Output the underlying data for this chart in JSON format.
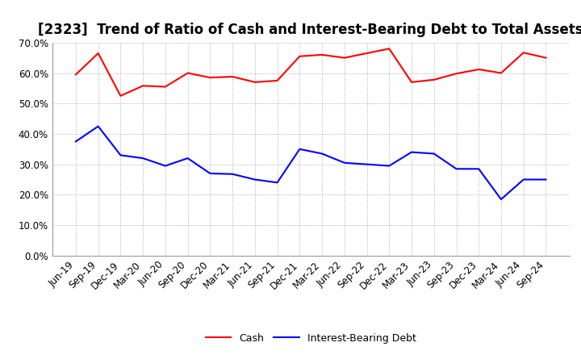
{
  "title": "[2323]  Trend of Ratio of Cash and Interest-Bearing Debt to Total Assets",
  "x_labels": [
    "Jun-19",
    "Sep-19",
    "Dec-19",
    "Mar-20",
    "Jun-20",
    "Sep-20",
    "Dec-20",
    "Mar-21",
    "Jun-21",
    "Sep-21",
    "Dec-21",
    "Mar-22",
    "Jun-22",
    "Sep-22",
    "Dec-22",
    "Mar-23",
    "Jun-23",
    "Sep-23",
    "Dec-23",
    "Mar-24",
    "Jun-24",
    "Sep-24"
  ],
  "cash": [
    0.595,
    0.665,
    0.525,
    0.558,
    0.555,
    0.6,
    0.585,
    0.588,
    0.57,
    0.575,
    0.655,
    0.66,
    0.65,
    0.665,
    0.68,
    0.57,
    0.578,
    0.598,
    0.612,
    0.6,
    0.667,
    0.65
  ],
  "debt": [
    0.375,
    0.425,
    0.33,
    0.32,
    0.295,
    0.32,
    0.27,
    0.268,
    0.25,
    0.24,
    0.35,
    0.335,
    0.305,
    0.3,
    0.295,
    0.34,
    0.335,
    0.285,
    0.285,
    0.185,
    0.25,
    0.25
  ],
  "cash_color": "#FF0000",
  "debt_color": "#0000FF",
  "background_color": "#FFFFFF",
  "grid_color": "#999999",
  "ylim": [
    0.0,
    0.7
  ],
  "yticks": [
    0.0,
    0.1,
    0.2,
    0.3,
    0.4,
    0.5,
    0.6,
    0.7
  ],
  "legend_cash": "Cash",
  "legend_debt": "Interest-Bearing Debt",
  "title_fontsize": 12,
  "tick_fontsize": 8.5,
  "legend_fontsize": 9,
  "linewidth": 1.5
}
